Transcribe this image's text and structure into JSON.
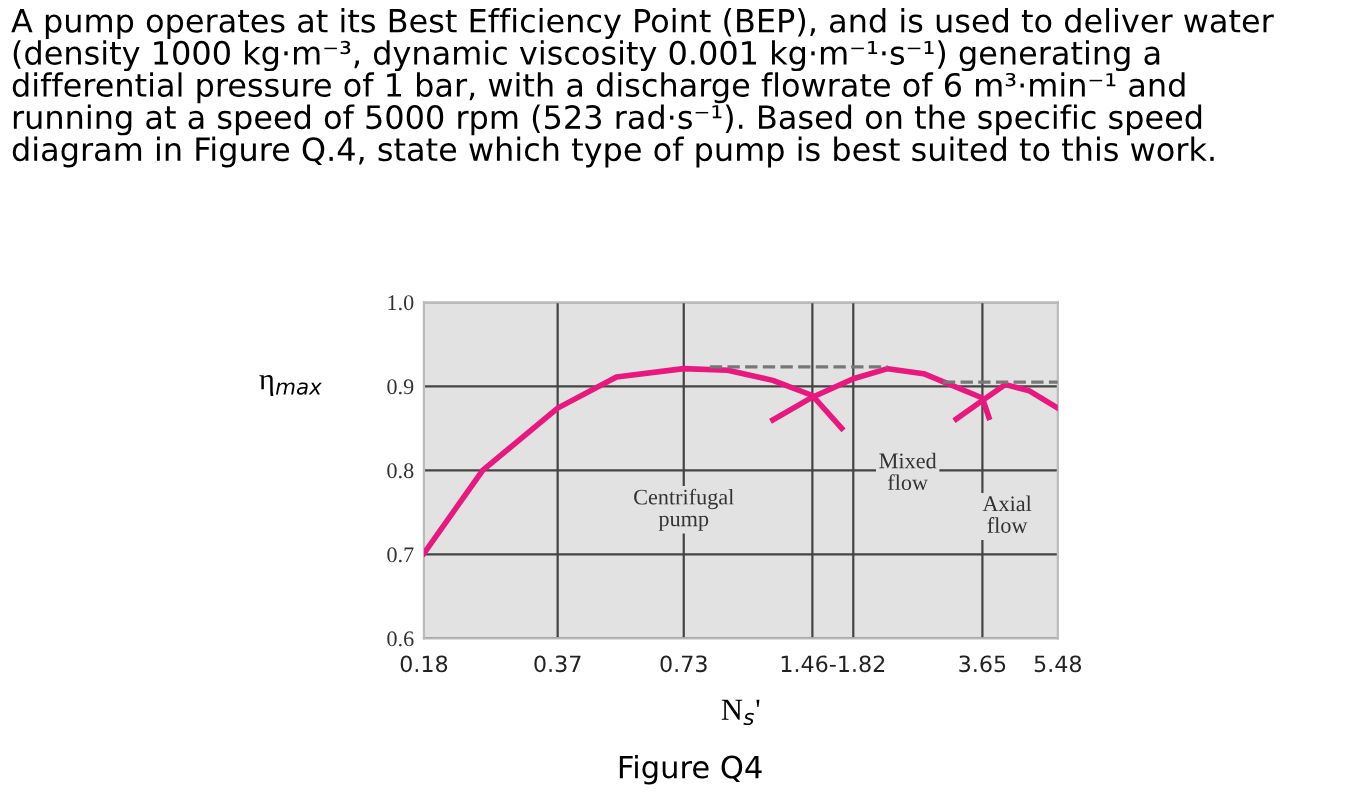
{
  "chart_data": {
    "type": "line",
    "title": "A pump operates at its Best Efficiency Point (BEP), and is used to deliver water\n(density 1000 kg·m⁻³, dynamic viscosity 0.001 kg·m⁻¹·s⁻¹) generating a\ndifferential pressure of 1 bar, with a discharge flowrate of 6 m³·min⁻¹ and\nrunning at a speed of 5000 rpm (523 rad·s⁻¹). Based on the specific speed\ndiagram in Figure Q.4, state which type of pump is best suited to this work.",
    "xlabel": "N$_{s}$'",
    "ylabel": "η$_{max}$",
    "log": "x",
    "xlim": [
      0.18,
      5.48
    ],
    "ylim": [
      0.6,
      1.0
    ],
    "xticks": [
      0.18,
      0.37,
      0.73,
      {
        "value": 1.63,
        "label": "1.46-1.82"
      },
      3.65,
      5.48
    ],
    "yticks": [
      0.6,
      0.7,
      0.8,
      0.9,
      {
        "value": 1.0,
        "label": "1.0"
      }
    ],
    "grid": "y",
    "ref_lines": [
      {
        "axis": "x",
        "value": 0.37,
        "color": "#444444"
      },
      {
        "axis": "x",
        "value": 0.73,
        "color": "#444444"
      },
      {
        "axis": "x",
        "value": 1.46,
        "color": "#444444"
      },
      {
        "axis": "x",
        "value": 1.82,
        "color": "#444444"
      },
      {
        "axis": "x",
        "value": 3.65,
        "color": "#444444"
      }
    ],
    "series": [
      {
        "color": "#e8187f",
        "x": [
          0.18,
          0.247,
          0.37,
          0.508,
          0.73,
          0.925,
          1.18,
          1.46,
          1.71
        ],
        "values": [
          0.701,
          0.8,
          0.874,
          0.911,
          0.921,
          0.919,
          0.907,
          0.889,
          0.85
        ]
      },
      {
        "color": "#e8187f",
        "x": [
          1.18,
          1.46,
          1.82,
          2.19,
          2.66,
          3.65,
          3.78
        ],
        "values": [
          0.86,
          0.887,
          0.909,
          0.921,
          0.915,
          0.886,
          0.863
        ]
      },
      {
        "color": "#e8187f",
        "x": [
          3.17,
          3.65,
          4.13,
          4.68,
          5.48
        ],
        "values": [
          0.861,
          0.883,
          0.902,
          0.895,
          0.874
        ]
      },
      {
        "color": "#777777",
        "line_style": "dashed",
        "x": [
          0.84,
          2.19
        ],
        "values": [
          0.923,
          0.923
        ]
      },
      {
        "color": "#777777",
        "line_style": "dashed",
        "x": [
          2.95,
          5.48
        ],
        "values": [
          0.905,
          0.905
        ]
      }
    ],
    "annotations": [
      {
        "text": "Centrifugal\npump",
        "x": 0.73,
        "y": 0.753
      },
      {
        "text": "Mixed\nflow",
        "x": 2.44,
        "y": 0.796
      },
      {
        "text": "Axial\nflow",
        "x": 4.17,
        "y": 0.745
      },
      "Figure Q4"
    ]
  }
}
